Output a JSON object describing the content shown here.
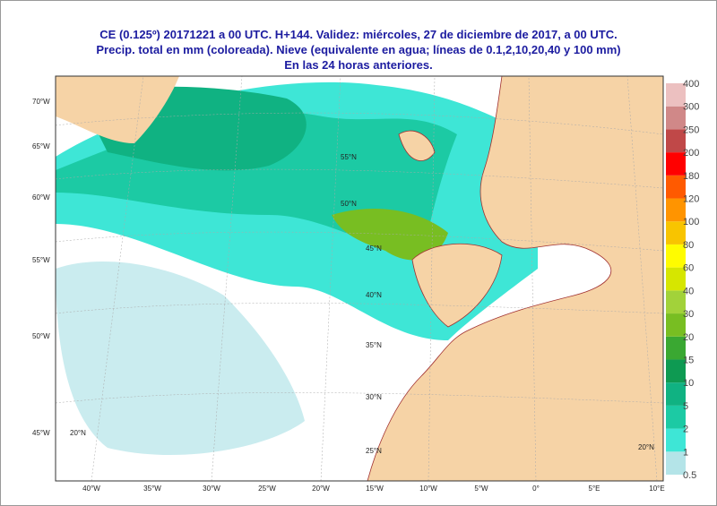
{
  "title": [
    "CE (0.125º) 20171221 a 00 UTC.  H+144. Validez: miércoles, 27 de diciembre de 2017,  a 00 UTC.",
    "Precip. total en mm (coloreada). Nieve (equivalente en agua; líneas de 0.1,2,10,20,40 y 100 mm)",
    "En las 24 horas anteriores."
  ],
  "legend": {
    "levels": [
      0.5,
      1,
      2,
      5,
      10,
      15,
      20,
      30,
      40,
      60,
      80,
      100,
      120,
      180,
      200,
      250,
      300,
      400
    ],
    "colors": [
      "#b4e4e8",
      "#3ee6d6",
      "#1ccaa4",
      "#10b282",
      "#0e9a52",
      "#3aa832",
      "#78be22",
      "#a2d23a",
      "#d6e600",
      "#fffc00",
      "#f8c400",
      "#ff9400",
      "#ff5a00",
      "#ff0000",
      "#c04848",
      "#d08888",
      "#ecc0c0"
    ]
  },
  "bottom_labels": [
    "40°W",
    "35°W",
    "30°W",
    "25°W",
    "20°W",
    "15°W",
    "10°W",
    "5°W",
    "0°",
    "5°E",
    "10°E"
  ],
  "left_labels": [
    "70°W",
    "65°W",
    "60°W",
    "55°W",
    "50°W",
    "45°W"
  ],
  "map_labels": [
    "55°N",
    "50°N",
    "45°N",
    "40°N",
    "35°N",
    "30°N",
    "25°N",
    "20°N",
    "20°N"
  ]
}
